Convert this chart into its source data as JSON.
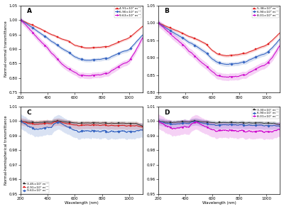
{
  "panels": [
    "A",
    "B",
    "C",
    "D"
  ],
  "ylabel_top": "Normal-normal transmittance",
  "ylabel_bottom": "Normal-hemispherical transmittance",
  "xlabel": "Wavelength (nm)",
  "x_range": [
    200,
    1100
  ],
  "panel_A": {
    "ylim": [
      0.75,
      1.05
    ],
    "yticks": [
      0.75,
      0.8,
      0.85,
      0.9,
      0.95,
      1.0,
      1.05
    ],
    "legend_loc": "upper right",
    "series": [
      {
        "label": "4.91×10⁴ m⁻¹",
        "color": "#e02020",
        "marker": "s",
        "x": [
          200,
          250,
          300,
          350,
          400,
          450,
          500,
          550,
          600,
          620,
          640,
          660,
          680,
          700,
          750,
          800,
          850,
          900,
          950,
          1000,
          1050,
          1100
        ],
        "y": [
          1.0,
          0.99,
          0.98,
          0.968,
          0.955,
          0.946,
          0.935,
          0.928,
          0.912,
          0.91,
          0.908,
          0.905,
          0.903,
          0.903,
          0.905,
          0.907,
          0.91,
          0.92,
          0.93,
          0.94,
          0.96,
          0.978
        ],
        "std": 0.004
      },
      {
        "label": "6.90×10⁴ m⁻¹",
        "color": "#3060c0",
        "marker": "D",
        "x": [
          200,
          250,
          300,
          350,
          400,
          450,
          500,
          550,
          600,
          620,
          640,
          660,
          680,
          700,
          750,
          800,
          850,
          900,
          950,
          1000,
          1050,
          1100
        ],
        "y": [
          1.0,
          0.986,
          0.97,
          0.952,
          0.935,
          0.92,
          0.903,
          0.89,
          0.872,
          0.868,
          0.865,
          0.862,
          0.86,
          0.86,
          0.863,
          0.866,
          0.87,
          0.882,
          0.892,
          0.9,
          0.926,
          0.948
        ],
        "std": 0.006
      },
      {
        "label": "9.63×10⁴ m⁻¹",
        "color": "#cc00cc",
        "marker": "p",
        "x": [
          200,
          250,
          300,
          350,
          400,
          450,
          500,
          550,
          600,
          620,
          640,
          660,
          680,
          700,
          750,
          800,
          850,
          900,
          950,
          1000,
          1050,
          1100
        ],
        "y": [
          1.0,
          0.978,
          0.952,
          0.924,
          0.9,
          0.876,
          0.85,
          0.832,
          0.818,
          0.812,
          0.808,
          0.808,
          0.806,
          0.806,
          0.81,
          0.813,
          0.82,
          0.836,
          0.85,
          0.862,
          0.9,
          0.938
        ],
        "std": 0.01
      }
    ]
  },
  "panel_B": {
    "ylim": [
      0.8,
      1.05
    ],
    "yticks": [
      0.8,
      0.85,
      0.9,
      0.95,
      1.0,
      1.05
    ],
    "legend_loc": "upper right",
    "series": [
      {
        "label": "5.38×10⁵ m⁻¹",
        "color": "#e02020",
        "marker": "s",
        "x": [
          200,
          250,
          300,
          350,
          400,
          450,
          500,
          550,
          600,
          620,
          640,
          660,
          680,
          700,
          750,
          800,
          850,
          900,
          950,
          1000,
          1050,
          1100
        ],
        "y": [
          1.0,
          0.992,
          0.984,
          0.975,
          0.965,
          0.958,
          0.95,
          0.94,
          0.92,
          0.915,
          0.91,
          0.908,
          0.906,
          0.905,
          0.907,
          0.91,
          0.914,
          0.922,
          0.93,
          0.938,
          0.955,
          0.972
        ],
        "std": 0.004
      },
      {
        "label": "6.90×10⁵ m⁻¹",
        "color": "#3060c0",
        "marker": "D",
        "x": [
          200,
          250,
          300,
          350,
          400,
          450,
          500,
          550,
          600,
          620,
          640,
          660,
          680,
          700,
          750,
          800,
          850,
          900,
          950,
          1000,
          1050,
          1100
        ],
        "y": [
          1.0,
          0.988,
          0.976,
          0.963,
          0.95,
          0.94,
          0.928,
          0.915,
          0.895,
          0.89,
          0.886,
          0.883,
          0.881,
          0.88,
          0.882,
          0.885,
          0.89,
          0.9,
          0.908,
          0.916,
          0.935,
          0.954
        ],
        "std": 0.006
      },
      {
        "label": "8.01×10⁵ m⁻¹",
        "color": "#cc00cc",
        "marker": "p",
        "x": [
          200,
          250,
          300,
          350,
          400,
          450,
          500,
          550,
          600,
          620,
          640,
          660,
          680,
          700,
          750,
          800,
          850,
          900,
          950,
          1000,
          1050,
          1100
        ],
        "y": [
          1.0,
          0.984,
          0.966,
          0.947,
          0.928,
          0.912,
          0.893,
          0.877,
          0.858,
          0.852,
          0.847,
          0.845,
          0.843,
          0.843,
          0.845,
          0.848,
          0.854,
          0.866,
          0.876,
          0.886,
          0.91,
          0.936
        ],
        "std": 0.01
      }
    ]
  },
  "panel_C": {
    "ylim": [
      0.95,
      1.01
    ],
    "yticks": [
      0.95,
      0.96,
      0.97,
      0.98,
      0.99,
      1.0,
      1.01
    ],
    "legend_loc": "lower left",
    "series": [
      {
        "label": "3.45×10⁷ m⁻¹",
        "color": "#333333",
        "marker": "s",
        "x": [
          200,
          250,
          300,
          350,
          400,
          420,
          440,
          460,
          480,
          500,
          520,
          540,
          560,
          580,
          600,
          620,
          640,
          660,
          680,
          700,
          750,
          800,
          850,
          900,
          950,
          1000,
          1050,
          1100
        ],
        "y": [
          1.0,
          0.9995,
          0.9992,
          0.999,
          0.999,
          0.9993,
          0.9997,
          1.0,
          1.0,
          0.9998,
          0.9996,
          0.9993,
          0.999,
          0.9988,
          0.9985,
          0.9983,
          0.9984,
          0.9984,
          0.9984,
          0.9985,
          0.9987,
          0.9988,
          0.9988,
          0.9989,
          0.999,
          0.9991,
          0.9993,
          0.9966
        ],
        "std": 0.0015
      },
      {
        "label": "4.91×10⁷ m⁻¹",
        "color": "#e02020",
        "marker": "s",
        "x": [
          200,
          250,
          300,
          350,
          400,
          420,
          440,
          460,
          480,
          500,
          520,
          540,
          560,
          580,
          600,
          620,
          640,
          660,
          680,
          700,
          750,
          800,
          850,
          900,
          950,
          1000,
          1050,
          1100
        ],
        "y": [
          1.0,
          0.999,
          0.9982,
          0.9978,
          0.9978,
          0.9982,
          0.9988,
          0.9993,
          0.9994,
          0.999,
          0.9987,
          0.9982,
          0.9977,
          0.9973,
          0.9968,
          0.9965,
          0.9966,
          0.9966,
          0.9967,
          0.9968,
          0.9971,
          0.9973,
          0.9974,
          0.9975,
          0.9976,
          0.9978,
          0.9982,
          0.996
        ],
        "std": 0.0025
      },
      {
        "label": "9.63×10⁷ m⁻¹",
        "color": "#3060c0",
        "marker": "D",
        "x": [
          200,
          250,
          300,
          350,
          400,
          420,
          440,
          460,
          480,
          500,
          520,
          540,
          560,
          580,
          600,
          620,
          640,
          660,
          680,
          700,
          750,
          800,
          850,
          900,
          950,
          1000,
          1050,
          1100
        ],
        "y": [
          1.0,
          0.9975,
          0.9952,
          0.994,
          0.9942,
          0.9955,
          0.997,
          0.9984,
          0.999,
          0.9982,
          0.9972,
          0.996,
          0.9948,
          0.9938,
          0.9926,
          0.9918,
          0.9919,
          0.992,
          0.9921,
          0.9923,
          0.9928,
          0.9933,
          0.9936,
          0.994,
          0.9943,
          0.9948,
          0.9957,
          0.994
        ],
        "std": 0.005
      }
    ]
  },
  "panel_D": {
    "ylim": [
      0.95,
      1.01
    ],
    "yticks": [
      0.95,
      0.96,
      0.97,
      0.98,
      0.99,
      1.0,
      1.01
    ],
    "legend_loc": "upper right",
    "series": [
      {
        "label": "3.30×10⁷ m⁻¹",
        "color": "#333333",
        "marker": "s",
        "x": [
          200,
          250,
          300,
          350,
          400,
          420,
          440,
          460,
          480,
          500,
          520,
          540,
          560,
          580,
          600,
          620,
          640,
          660,
          680,
          700,
          750,
          800,
          850,
          900,
          950,
          1000,
          1050,
          1100
        ],
        "y": [
          1.0,
          0.9996,
          0.9993,
          0.9992,
          0.9992,
          0.9994,
          0.9997,
          1.0,
          1.0,
          0.9998,
          0.9996,
          0.9994,
          0.9992,
          0.999,
          0.9987,
          0.9985,
          0.9986,
          0.9986,
          0.9987,
          0.9987,
          0.9989,
          0.999,
          0.9991,
          0.9991,
          0.9992,
          0.9992,
          0.9994,
          0.9975
        ],
        "std": 0.0015
      },
      {
        "label": "6.90×10⁷ m⁻¹",
        "color": "#3060c0",
        "marker": "D",
        "x": [
          200,
          250,
          300,
          350,
          400,
          420,
          440,
          460,
          480,
          500,
          520,
          540,
          560,
          580,
          600,
          620,
          640,
          660,
          680,
          700,
          750,
          800,
          850,
          900,
          950,
          1000,
          1050,
          1100
        ],
        "y": [
          1.0,
          0.999,
          0.9982,
          0.9978,
          0.9979,
          0.9983,
          0.9989,
          0.9994,
          0.9995,
          0.9991,
          0.9988,
          0.9983,
          0.9978,
          0.9974,
          0.997,
          0.9967,
          0.9968,
          0.9968,
          0.9969,
          0.997,
          0.9973,
          0.9975,
          0.9976,
          0.9977,
          0.9978,
          0.9979,
          0.9983,
          0.9965
        ],
        "std": 0.0025
      },
      {
        "label": "8.01×10⁷ m⁻¹",
        "color": "#cc00cc",
        "marker": "p",
        "x": [
          200,
          250,
          300,
          350,
          400,
          420,
          440,
          460,
          480,
          500,
          520,
          540,
          560,
          580,
          600,
          620,
          640,
          660,
          680,
          700,
          750,
          800,
          850,
          900,
          950,
          1000,
          1050,
          1100
        ],
        "y": [
          1.0,
          0.9978,
          0.9956,
          0.9946,
          0.9947,
          0.9957,
          0.9971,
          0.9984,
          0.999,
          0.9983,
          0.9974,
          0.9963,
          0.9951,
          0.9942,
          0.993,
          0.9923,
          0.9924,
          0.9924,
          0.9925,
          0.9927,
          0.9931,
          0.9935,
          0.9938,
          0.994,
          0.9943,
          0.9947,
          0.9956,
          0.9945
        ],
        "std": 0.005
      }
    ]
  }
}
